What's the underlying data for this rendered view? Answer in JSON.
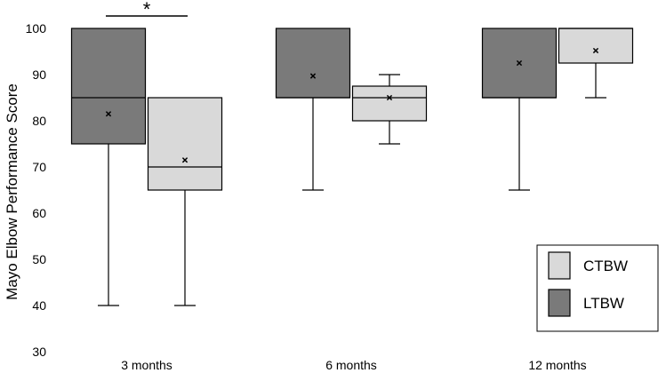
{
  "chart_data": {
    "type": "boxplot",
    "title": "",
    "xlabel": "",
    "ylabel": "Mayo Elbow Performance Score",
    "ylim": [
      30,
      100
    ],
    "yticks": [
      30,
      40,
      50,
      60,
      70,
      80,
      90,
      100
    ],
    "grid": false,
    "legend_position": "bottom-right",
    "categories": [
      "3 months",
      "6 months",
      "12 months"
    ],
    "series": [
      {
        "name": "LTBW",
        "color": "#7a7a7a",
        "boxes": [
          {
            "min": 40,
            "q1": 75,
            "median": 85,
            "q3": 100,
            "max": 100,
            "mean": 81.5
          },
          {
            "min": 65,
            "q1": 85,
            "median": 85,
            "q3": 100,
            "max": 100,
            "mean": 89.7
          },
          {
            "min": 65,
            "q1": 85,
            "median": 85,
            "q3": 100,
            "max": 100,
            "mean": 92.5
          }
        ]
      },
      {
        "name": "CTBW",
        "color": "#d9d9d9",
        "boxes": [
          {
            "min": 40,
            "q1": 65,
            "median": 70,
            "q3": 85,
            "max": 85,
            "mean": 71.5
          },
          {
            "min": 75,
            "q1": 80,
            "median": 85,
            "q3": 87.5,
            "max": 90,
            "mean": 85
          },
          {
            "min": 85,
            "q1": 92.5,
            "median": 100,
            "q3": 100,
            "max": 100,
            "mean": 95.2
          }
        ]
      }
    ],
    "legend_order": [
      "CTBW",
      "LTBW"
    ],
    "annotations": [
      {
        "text": "*",
        "category": "3 months"
      }
    ]
  }
}
